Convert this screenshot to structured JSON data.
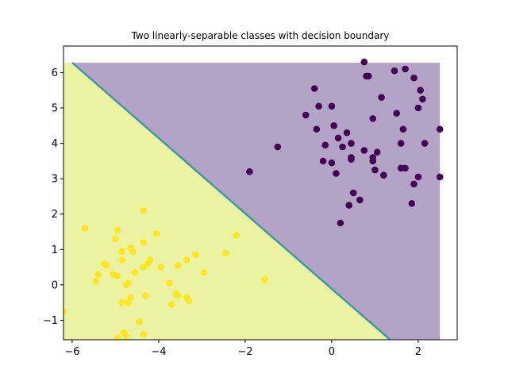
{
  "chart_data": {
    "type": "scatter",
    "title": "Two linearly-separable classes with decision boundary",
    "xlabel": "",
    "ylabel": "",
    "xlim": [
      -6.2,
      2.9
    ],
    "ylim": [
      -1.55,
      6.75
    ],
    "grid": false,
    "x_ticks": [
      {
        "value": -6,
        "label": "−6"
      },
      {
        "value": -4,
        "label": "−4"
      },
      {
        "value": -2,
        "label": "−2"
      },
      {
        "value": 0,
        "label": "0"
      },
      {
        "value": 2,
        "label": "2"
      }
    ],
    "y_ticks": [
      {
        "value": -1,
        "label": "−1"
      },
      {
        "value": 0,
        "label": "0"
      },
      {
        "value": 1,
        "label": "1"
      },
      {
        "value": 2,
        "label": "2"
      },
      {
        "value": 3,
        "label": "3"
      },
      {
        "value": 4,
        "label": "4"
      },
      {
        "value": 5,
        "label": "5"
      },
      {
        "value": 6,
        "label": "6"
      }
    ],
    "decision_regions": {
      "x_extent": [
        -6.2,
        2.5
      ],
      "y_extent": [
        -1.55,
        6.28
      ],
      "boundary": [
        [
          -6.0,
          6.28
        ],
        [
          1.35,
          -1.55
        ]
      ],
      "class_0_color": "#b3a4c7",
      "class_1_color": "#ebf3a2",
      "boundary_color": "#3e9ba0"
    },
    "series": [
      {
        "color": "#440154",
        "points": [
          [
            0.75,
            6.3
          ],
          [
            1.7,
            6.1
          ],
          [
            1.45,
            6.05
          ],
          [
            0.85,
            5.9
          ],
          [
            0.8,
            5.9
          ],
          [
            1.9,
            5.85
          ],
          [
            -0.4,
            5.55
          ],
          [
            2.05,
            5.5
          ],
          [
            1.15,
            5.3
          ],
          [
            2.1,
            5.25
          ],
          [
            -0.3,
            5.05
          ],
          [
            0.0,
            5.05
          ],
          [
            2.0,
            5.0
          ],
          [
            1.5,
            4.85
          ],
          [
            -0.6,
            4.8
          ],
          [
            0.95,
            4.7
          ],
          [
            0.05,
            4.5
          ],
          [
            -0.35,
            4.4
          ],
          [
            1.65,
            4.4
          ],
          [
            2.5,
            4.4
          ],
          [
            0.35,
            4.3
          ],
          [
            0.15,
            4.15
          ],
          [
            0.45,
            4.0
          ],
          [
            1.6,
            4.0
          ],
          [
            2.15,
            4.0
          ],
          [
            -0.15,
            3.95
          ],
          [
            0.25,
            3.9
          ],
          [
            -1.25,
            3.9
          ],
          [
            0.75,
            3.8
          ],
          [
            1.05,
            3.75
          ],
          [
            0.45,
            3.6
          ],
          [
            0.45,
            3.55
          ],
          [
            0.95,
            3.6
          ],
          [
            0.95,
            3.5
          ],
          [
            -0.2,
            3.5
          ],
          [
            0.0,
            3.45
          ],
          [
            1.6,
            3.3
          ],
          [
            1.7,
            3.3
          ],
          [
            1.0,
            3.25
          ],
          [
            -1.9,
            3.2
          ],
          [
            0.1,
            3.15
          ],
          [
            1.2,
            3.1
          ],
          [
            2.0,
            3.05
          ],
          [
            2.5,
            3.05
          ],
          [
            1.9,
            2.85
          ],
          [
            0.5,
            2.6
          ],
          [
            0.65,
            2.4
          ],
          [
            0.4,
            2.25
          ],
          [
            1.85,
            2.3
          ],
          [
            0.2,
            1.75
          ]
        ]
      },
      {
        "color": "#fde725",
        "points": [
          [
            -4.35,
            2.1
          ],
          [
            -5.7,
            1.6
          ],
          [
            -4.95,
            1.55
          ],
          [
            -2.2,
            1.4
          ],
          [
            -4.05,
            1.45
          ],
          [
            -5.0,
            1.3
          ],
          [
            -4.35,
            1.2
          ],
          [
            -4.65,
            1.05
          ],
          [
            -4.6,
            0.95
          ],
          [
            -4.85,
            0.95
          ],
          [
            -2.45,
            0.9
          ],
          [
            -3.15,
            0.85
          ],
          [
            -4.85,
            0.7
          ],
          [
            -4.2,
            0.7
          ],
          [
            -4.25,
            0.6
          ],
          [
            -3.35,
            0.7
          ],
          [
            -5.2,
            0.55
          ],
          [
            -5.25,
            0.6
          ],
          [
            -3.95,
            0.5
          ],
          [
            -4.35,
            0.5
          ],
          [
            -3.55,
            0.55
          ],
          [
            -2.95,
            0.35
          ],
          [
            -4.55,
            0.35
          ],
          [
            -5.05,
            0.3
          ],
          [
            -5.4,
            0.3
          ],
          [
            -4.95,
            0.25
          ],
          [
            -5.45,
            0.1
          ],
          [
            -4.7,
            0.05
          ],
          [
            -4.75,
            0.0
          ],
          [
            -3.75,
            0.05
          ],
          [
            -1.55,
            0.15
          ],
          [
            -4.3,
            -0.3
          ],
          [
            -3.6,
            -0.25
          ],
          [
            -3.35,
            -0.35
          ],
          [
            -3.55,
            -0.3
          ],
          [
            -4.65,
            -0.35
          ],
          [
            -3.3,
            -0.45
          ],
          [
            -4.85,
            -0.5
          ],
          [
            -4.7,
            -0.5
          ],
          [
            -3.7,
            -0.55
          ],
          [
            -6.2,
            -0.75
          ],
          [
            -4.45,
            -1.05
          ],
          [
            -4.8,
            -1.35
          ],
          [
            -4.35,
            -1.4
          ],
          [
            -4.75,
            -1.45
          ],
          [
            -4.95,
            -1.5
          ]
        ]
      }
    ]
  }
}
